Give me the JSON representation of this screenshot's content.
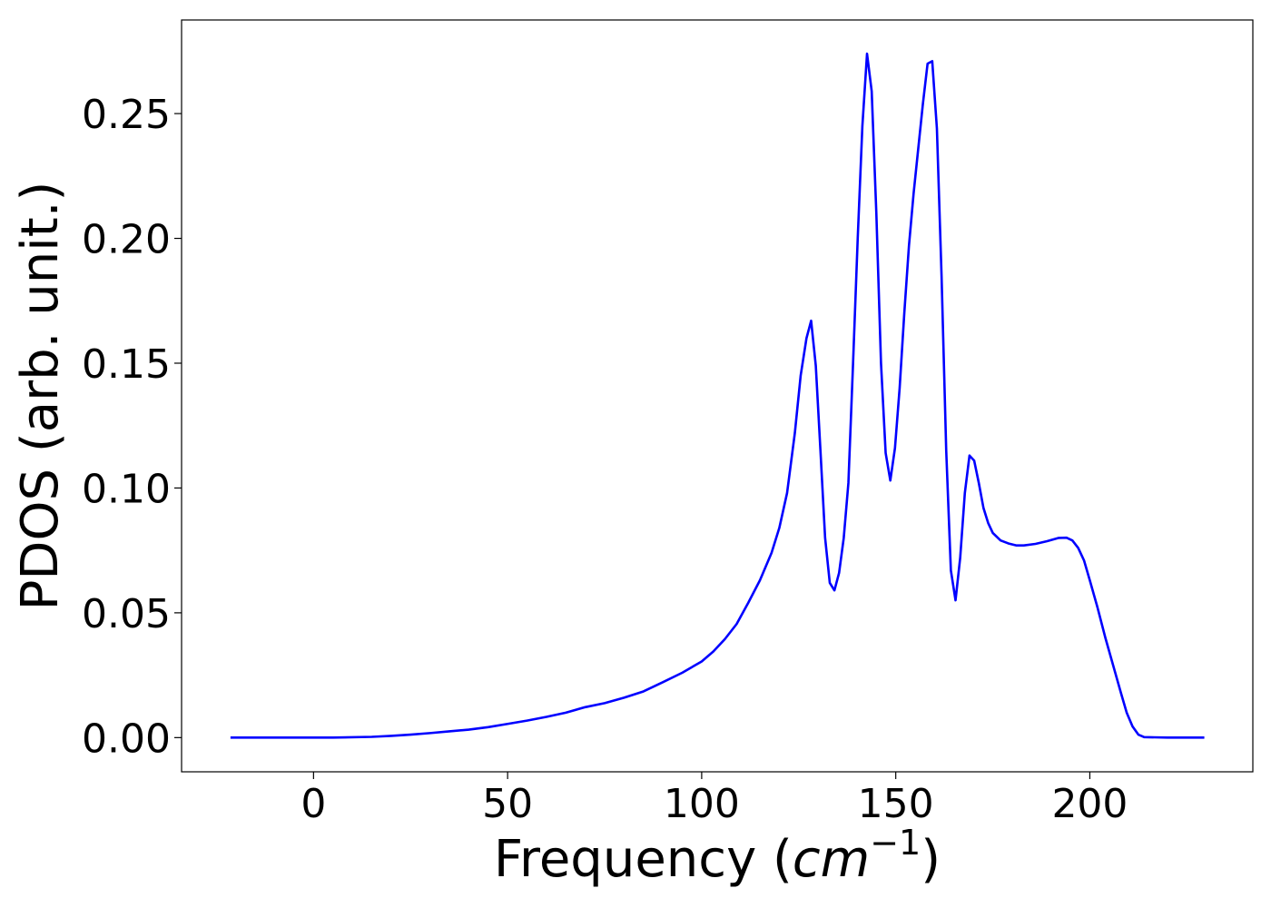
{
  "chart_data": {
    "type": "line",
    "title": "",
    "xlabel": "Frequency (",
    "xlabel_math": "cm",
    "xlabel_exp": "−1",
    "xlabel_close": ")",
    "ylabel": "PDOS (arb. unit.)",
    "xlim": [
      -34,
      242
    ],
    "ylim": [
      -0.0137,
      0.2875
    ],
    "xticks": [
      0,
      50,
      100,
      150,
      200
    ],
    "xtick_labels": [
      "0",
      "50",
      "100",
      "150",
      "200"
    ],
    "yticks": [
      0.0,
      0.05,
      0.1,
      0.15,
      0.2,
      0.25
    ],
    "ytick_labels": [
      "0.00",
      "0.05",
      "0.10",
      "0.15",
      "0.20",
      "0.25"
    ],
    "grid": false,
    "series": [
      {
        "color": "#0000ff",
        "x": [
          -21.4,
          0,
          5,
          15,
          20,
          25,
          30,
          35,
          40,
          45,
          50,
          55,
          60,
          65,
          70,
          75,
          80,
          85,
          90,
          95,
          100,
          103,
          106,
          109,
          112,
          115,
          118,
          120,
          122,
          124,
          125.5,
          127,
          128.2,
          129.4,
          130.6,
          131.8,
          133,
          134.2,
          135.4,
          136.6,
          137.8,
          139,
          140.2,
          141.4,
          142.6,
          143.8,
          145,
          146.2,
          147.4,
          148.6,
          149.8,
          151,
          152.2,
          153.4,
          154.6,
          155.8,
          157,
          158.2,
          159.4,
          160.6,
          161.8,
          163,
          164.2,
          165.4,
          166.6,
          167.8,
          169,
          170.2,
          171.4,
          172.6,
          173.8,
          175,
          177,
          179,
          181,
          183,
          186,
          189,
          192,
          194,
          195.5,
          197,
          198.5,
          200,
          202,
          204,
          206,
          208,
          209.5,
          211,
          212.5,
          214,
          220,
          229.5
        ],
        "y": [
          0.0,
          0.0,
          0.0,
          0.0003,
          0.0007,
          0.0012,
          0.0018,
          0.0025,
          0.0032,
          0.0042,
          0.0055,
          0.0068,
          0.0083,
          0.01,
          0.0122,
          0.0138,
          0.016,
          0.0185,
          0.0222,
          0.026,
          0.0305,
          0.0345,
          0.0395,
          0.0455,
          0.054,
          0.063,
          0.074,
          0.084,
          0.098,
          0.122,
          0.145,
          0.16,
          0.167,
          0.149,
          0.115,
          0.08,
          0.062,
          0.059,
          0.066,
          0.08,
          0.102,
          0.15,
          0.2,
          0.245,
          0.274,
          0.259,
          0.21,
          0.15,
          0.114,
          0.103,
          0.116,
          0.14,
          0.17,
          0.197,
          0.218,
          0.236,
          0.254,
          0.27,
          0.271,
          0.244,
          0.185,
          0.115,
          0.067,
          0.055,
          0.072,
          0.098,
          0.113,
          0.111,
          0.102,
          0.092,
          0.086,
          0.082,
          0.079,
          0.0778,
          0.077,
          0.077,
          0.0776,
          0.0787,
          0.08,
          0.0801,
          0.079,
          0.076,
          0.071,
          0.063,
          0.052,
          0.04,
          0.029,
          0.018,
          0.01,
          0.0045,
          0.0012,
          0.0002,
          0.0,
          0.0
        ]
      }
    ]
  }
}
